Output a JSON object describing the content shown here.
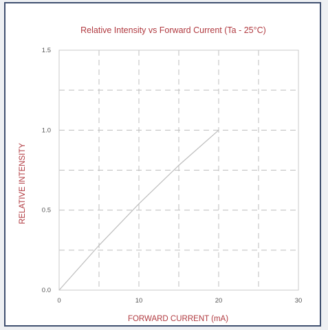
{
  "chart_data": {
    "type": "line",
    "title": "Relative Intensity vs Forward Current (Ta - 25°C)",
    "xlabel": "FORWARD CURRENT (mA)",
    "ylabel": "RELATIVE INTENSITY",
    "xlim": [
      0,
      30
    ],
    "ylim": [
      0,
      1.5
    ],
    "x_ticks": [
      "0",
      "10",
      "20",
      "30"
    ],
    "y_ticks": [
      "0.0",
      "0.5",
      "1.0",
      "1.5"
    ],
    "grid": true,
    "series": [
      {
        "x": [
          0,
          5,
          10,
          15,
          20
        ],
        "y": [
          0,
          0.28,
          0.54,
          0.78,
          1.0
        ]
      }
    ],
    "line_color": "#bdbdbd",
    "text_color": "#b0393f",
    "grid_color": "#bdbdbd"
  }
}
